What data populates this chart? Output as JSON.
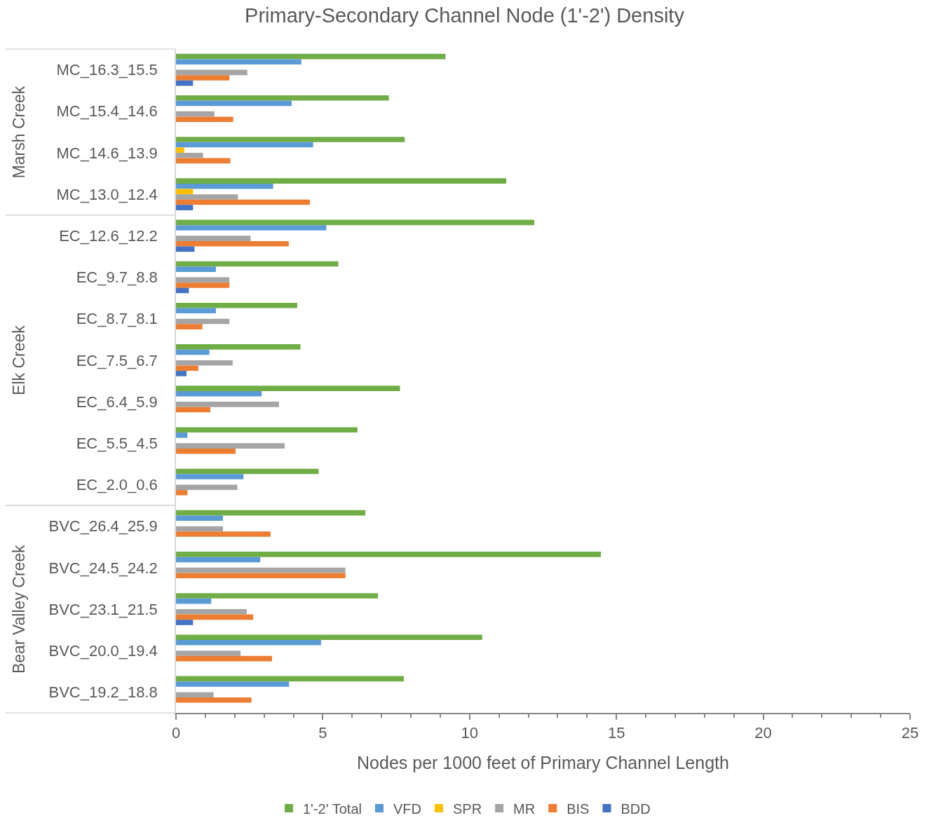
{
  "chart_data": [
    {
      "type": "bar",
      "orientation": "horizontal",
      "title": "Primary-Secondary Channel Node (1'-2') Density",
      "ylabel": "Marsh Creek",
      "categories": [
        "MC_16.3_15.5",
        "MC_15.4_14.6",
        "MC_14.6_13.9",
        "MC_13.0_12.4"
      ],
      "series": [
        {
          "name": "1'-2' Total",
          "color": "#70ad47",
          "values": [
            9.18,
            7.25,
            7.79,
            11.25
          ]
        },
        {
          "name": "VFD",
          "color": "#5b9bd5",
          "values": [
            4.27,
            3.94,
            4.67,
            3.31
          ]
        },
        {
          "name": "SPR",
          "color": "#ffc000",
          "values": [
            null,
            null,
            0.28,
            0.58
          ]
        },
        {
          "name": "MR",
          "color": "#a5a5a5",
          "values": [
            2.43,
            1.31,
            0.92,
            2.11
          ]
        },
        {
          "name": "BIS",
          "color": "#ed7d31",
          "values": [
            1.82,
            1.95,
            1.85,
            4.56
          ]
        },
        {
          "name": "BDD",
          "color": "#4472c4",
          "values": [
            0.58,
            null,
            null,
            0.58
          ]
        }
      ],
      "xlim": [
        0,
        25
      ],
      "tick_labels": "y",
      "legend": "bottom"
    },
    {
      "type": "bar",
      "orientation": "horizontal",
      "ylabel": "Elk Creek",
      "categories": [
        "EC_12.6_12.2",
        "EC_9.7_8.8",
        "EC_8.7_8.1",
        "EC_7.5_6.7",
        "EC_6.4_5.9",
        "EC_5.5_4.5",
        "EC_2.0_0.6"
      ],
      "series": [
        {
          "color": "#70ad47",
          "values": [
            12.2,
            5.53,
            4.13,
            4.24,
            7.63,
            6.18,
            4.86
          ]
        },
        {
          "color": "#5b9bd5",
          "values": [
            5.12,
            1.36,
            1.36,
            1.14,
            2.92,
            0.39,
            2.3
          ]
        },
        {
          "color": "#ffc000",
          "values": [
            null,
            null,
            null,
            null,
            null,
            null,
            null
          ]
        },
        {
          "color": "#a5a5a5",
          "values": [
            2.54,
            1.82,
            1.82,
            1.93,
            3.51,
            3.7,
            2.09
          ]
        },
        {
          "color": "#ed7d31",
          "values": [
            3.84,
            1.82,
            0.9,
            0.76,
            1.17,
            2.03,
            0.39
          ]
        },
        {
          "color": "#4472c4",
          "values": [
            0.63,
            0.44,
            null,
            0.36,
            null,
            null,
            null
          ]
        }
      ],
      "xlim": [
        0,
        25
      ],
      "tick_labels": "y"
    },
    {
      "type": "bar",
      "orientation": "horizontal",
      "ylabel": "Bear Valley Creek",
      "xlabel": "Nodes per 1000 feet of Primary Channel Length",
      "categories": [
        "BVC_26.4_25.9",
        "BVC_24.5_24.2",
        "BVC_23.1_21.5",
        "BVC_20.0_19.4",
        "BVC_19.2_18.8"
      ],
      "series": [
        {
          "color": "#70ad47",
          "values": [
            6.45,
            14.47,
            6.88,
            10.43,
            7.76
          ]
        },
        {
          "color": "#5b9bd5",
          "values": [
            1.6,
            2.87,
            1.2,
            4.94,
            3.85
          ]
        },
        {
          "color": "#ffc000",
          "values": [
            null,
            null,
            null,
            null,
            null
          ]
        },
        {
          "color": "#a5a5a5",
          "values": [
            1.6,
            5.77,
            2.41,
            2.2,
            1.28
          ]
        },
        {
          "color": "#ed7d31",
          "values": [
            3.22,
            5.77,
            2.63,
            3.27,
            2.57
          ]
        },
        {
          "color": "#4472c4",
          "values": [
            null,
            null,
            0.58,
            null,
            null
          ]
        }
      ],
      "xlim": [
        0,
        25
      ],
      "xticks": [
        0,
        {
          "value": 1,
          "label": null
        },
        {
          "value": 2,
          "label": null
        },
        {
          "value": 3,
          "label": null
        },
        {
          "value": 4,
          "label": null
        },
        5,
        {
          "value": 6,
          "label": null
        },
        {
          "value": 7,
          "label": null
        },
        {
          "value": 8,
          "label": null
        },
        {
          "value": 9,
          "label": null
        },
        10,
        {
          "value": 11,
          "label": null
        },
        {
          "value": 12,
          "label": null
        },
        {
          "value": 13,
          "label": null
        },
        {
          "value": 14,
          "label": null
        },
        15,
        {
          "value": 16,
          "label": null
        },
        {
          "value": 17,
          "label": null
        },
        {
          "value": 18,
          "label": null
        },
        {
          "value": 19,
          "label": null
        },
        20,
        {
          "value": 21,
          "label": null
        },
        {
          "value": 22,
          "label": null
        },
        {
          "value": 23,
          "label": null
        },
        {
          "value": 24,
          "label": null
        },
        25
      ]
    }
  ]
}
